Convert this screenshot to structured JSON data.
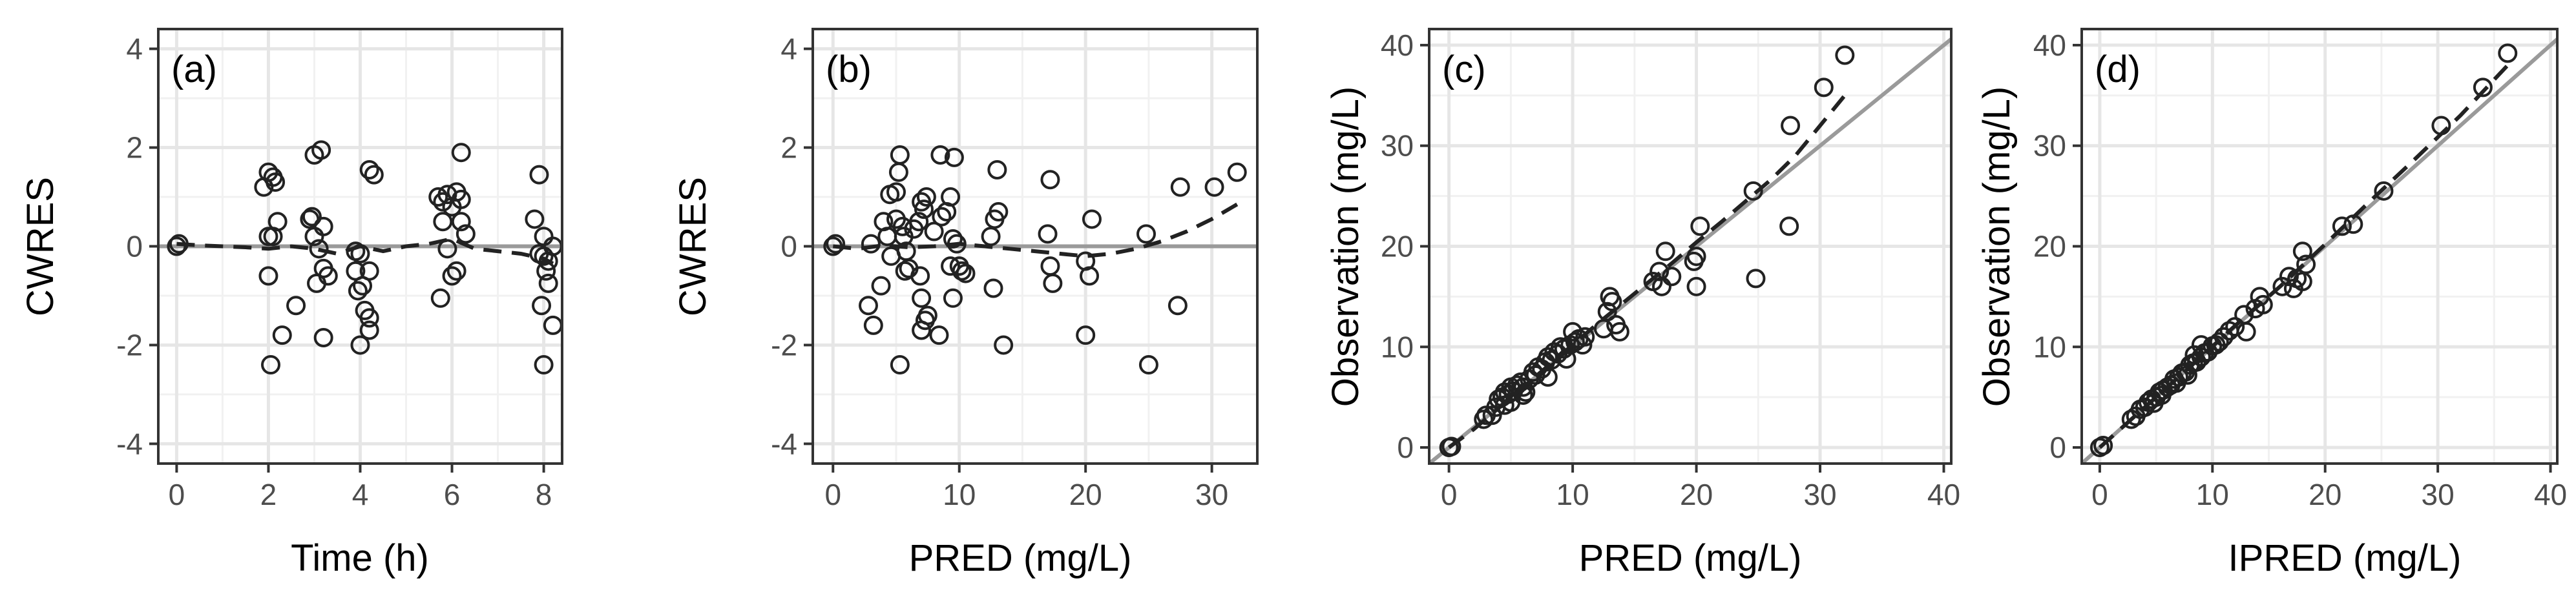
{
  "figure": {
    "title": ""
  },
  "chart_data": [
    {
      "type": "scatter",
      "panel_label": "(a)",
      "xlabel": "Time (h)",
      "ylabel": "CWRES",
      "xlim": [
        -0.4,
        8.4
      ],
      "ylim": [
        -4.4,
        4.4
      ],
      "x_ticks": [
        0,
        2,
        4,
        6,
        8
      ],
      "y_ticks": [
        -4,
        -2,
        0,
        2,
        4
      ],
      "reference_line": {
        "type": "horizontal",
        "value": 0
      },
      "points": [
        [
          0,
          0
        ],
        [
          0.05,
          0.05
        ],
        [
          1.9,
          1.2
        ],
        [
          2.0,
          1.5
        ],
        [
          2.1,
          1.4
        ],
        [
          2.15,
          1.3
        ],
        [
          2.0,
          0.2
        ],
        [
          2.1,
          0.2
        ],
        [
          2.0,
          -0.6
        ],
        [
          2.05,
          -2.4
        ],
        [
          2.3,
          -1.8
        ],
        [
          2.2,
          0.5
        ],
        [
          2.6,
          -1.2
        ],
        [
          2.9,
          0.55
        ],
        [
          2.95,
          0.6
        ],
        [
          3.0,
          0.2
        ],
        [
          3.0,
          1.85
        ],
        [
          3.15,
          1.95
        ],
        [
          3.2,
          0.4
        ],
        [
          3.1,
          -0.05
        ],
        [
          3.2,
          -0.45
        ],
        [
          3.3,
          -0.6
        ],
        [
          3.05,
          -0.75
        ],
        [
          3.2,
          -1.85
        ],
        [
          3.9,
          -0.5
        ],
        [
          3.9,
          -0.1
        ],
        [
          4.0,
          -0.15
        ],
        [
          3.95,
          -0.9
        ],
        [
          4.05,
          -0.8
        ],
        [
          4.2,
          -0.5
        ],
        [
          4.1,
          -1.3
        ],
        [
          4.2,
          -1.45
        ],
        [
          4.2,
          -1.7
        ],
        [
          4.0,
          -2.0
        ],
        [
          4.2,
          1.55
        ],
        [
          4.3,
          1.45
        ],
        [
          5.7,
          1.0
        ],
        [
          5.8,
          0.9
        ],
        [
          5.8,
          0.5
        ],
        [
          5.9,
          1.05
        ],
        [
          6.0,
          0.8
        ],
        [
          6.1,
          1.1
        ],
        [
          6.2,
          1.9
        ],
        [
          6.2,
          0.95
        ],
        [
          6.2,
          0.5
        ],
        [
          6.3,
          0.25
        ],
        [
          5.9,
          -0.05
        ],
        [
          6.1,
          -0.5
        ],
        [
          6.0,
          -0.6
        ],
        [
          5.75,
          -1.05
        ],
        [
          7.8,
          0.55
        ],
        [
          7.9,
          1.45
        ],
        [
          7.9,
          -0.15
        ],
        [
          8.0,
          0.2
        ],
        [
          8.0,
          -0.2
        ],
        [
          8.1,
          -0.3
        ],
        [
          8.2,
          0.0
        ],
        [
          8.05,
          -0.5
        ],
        [
          8.1,
          -0.75
        ],
        [
          7.95,
          -1.2
        ],
        [
          8.2,
          -1.6
        ],
        [
          8.0,
          -2.4
        ]
      ],
      "smooth": [
        [
          0,
          0.05
        ],
        [
          0.5,
          0.02
        ],
        [
          1,
          0.0
        ],
        [
          1.5,
          -0.02
        ],
        [
          2,
          -0.05
        ],
        [
          2.5,
          0.0
        ],
        [
          3,
          -0.05
        ],
        [
          3.5,
          -0.15
        ],
        [
          4,
          0.0
        ],
        [
          4.5,
          -0.1
        ],
        [
          5,
          0.0
        ],
        [
          5.5,
          0.05
        ],
        [
          6,
          0.15
        ],
        [
          6.5,
          -0.05
        ],
        [
          7,
          -0.1
        ],
        [
          7.5,
          -0.15
        ],
        [
          8,
          -0.25
        ],
        [
          8.2,
          -0.35
        ]
      ]
    },
    {
      "type": "scatter",
      "panel_label": "(b)",
      "xlabel": "PRED (mg/L)",
      "ylabel": "CWRES",
      "xlim": [
        -1.6,
        33.6
      ],
      "ylim": [
        -4.4,
        4.4
      ],
      "x_ticks": [
        0,
        10,
        20,
        30
      ],
      "y_ticks": [
        -4,
        -2,
        0,
        2,
        4
      ],
      "reference_line": {
        "type": "horizontal",
        "value": 0
      },
      "points": [
        [
          0,
          0
        ],
        [
          0.2,
          0.05
        ],
        [
          2.8,
          -1.2
        ],
        [
          3.2,
          -1.6
        ],
        [
          3.0,
          0.05
        ],
        [
          3.8,
          -0.8
        ],
        [
          4.0,
          0.5
        ],
        [
          4.5,
          1.05
        ],
        [
          4.3,
          0.2
        ],
        [
          4.6,
          -0.2
        ],
        [
          5.0,
          1.1
        ],
        [
          5.2,
          1.5
        ],
        [
          5.3,
          1.85
        ],
        [
          5.0,
          0.55
        ],
        [
          5.5,
          0.4
        ],
        [
          5.6,
          0.2
        ],
        [
          5.8,
          -0.1
        ],
        [
          5.7,
          -0.5
        ],
        [
          6.0,
          -0.45
        ],
        [
          5.3,
          -2.4
        ],
        [
          6.4,
          0.35
        ],
        [
          6.8,
          0.5
        ],
        [
          7.0,
          0.9
        ],
        [
          7.2,
          0.75
        ],
        [
          7.4,
          1.0
        ],
        [
          6.9,
          -0.6
        ],
        [
          7.0,
          -1.05
        ],
        [
          7.3,
          -1.5
        ],
        [
          7.0,
          -1.7
        ],
        [
          7.5,
          -1.4
        ],
        [
          8.0,
          0.3
        ],
        [
          8.5,
          1.85
        ],
        [
          8.6,
          0.6
        ],
        [
          8.4,
          -1.8
        ],
        [
          9.0,
          0.7
        ],
        [
          9.3,
          1.0
        ],
        [
          9.6,
          1.8
        ],
        [
          9.5,
          0.15
        ],
        [
          9.3,
          -0.4
        ],
        [
          9.5,
          -1.05
        ],
        [
          10.0,
          -0.4
        ],
        [
          10.2,
          -0.5
        ],
        [
          10.5,
          -0.55
        ],
        [
          9.8,
          0.05
        ],
        [
          13.0,
          1.55
        ],
        [
          12.8,
          0.55
        ],
        [
          13.1,
          0.7
        ],
        [
          12.7,
          -0.85
        ],
        [
          13.5,
          -2.0
        ],
        [
          12.5,
          0.2
        ],
        [
          17.2,
          1.35
        ],
        [
          17.0,
          0.25
        ],
        [
          17.2,
          -0.4
        ],
        [
          17.4,
          -0.75
        ],
        [
          20.0,
          -0.3
        ],
        [
          20.3,
          -0.6
        ],
        [
          20.5,
          0.55
        ],
        [
          20.0,
          -1.8
        ],
        [
          24.8,
          0.25
        ],
        [
          25.0,
          -2.4
        ],
        [
          27.5,
          1.2
        ],
        [
          27.3,
          -1.2
        ],
        [
          30.2,
          1.2
        ],
        [
          32.0,
          1.5
        ]
      ],
      "smooth": [
        [
          0,
          0.0
        ],
        [
          2,
          -0.05
        ],
        [
          4,
          0.02
        ],
        [
          6,
          -0.02
        ],
        [
          8,
          0.0
        ],
        [
          10,
          0.05
        ],
        [
          12,
          0.0
        ],
        [
          14,
          -0.05
        ],
        [
          16,
          -0.1
        ],
        [
          18,
          -0.15
        ],
        [
          20,
          -0.2
        ],
        [
          22,
          -0.15
        ],
        [
          24,
          -0.05
        ],
        [
          26,
          0.1
        ],
        [
          28,
          0.3
        ],
        [
          30,
          0.55
        ],
        [
          32,
          0.85
        ]
      ]
    },
    {
      "type": "scatter",
      "panel_label": "(c)",
      "xlabel": "PRED (mg/L)",
      "ylabel": "Observation (mg/L)",
      "xlim": [
        -1.6,
        40.6
      ],
      "ylim": [
        -1.6,
        41.6
      ],
      "x_ticks": [
        0,
        10,
        20,
        30,
        40
      ],
      "y_ticks": [
        0,
        10,
        20,
        30,
        40
      ],
      "reference_line": {
        "type": "identity"
      },
      "points": [
        [
          0,
          0
        ],
        [
          0.2,
          0.1
        ],
        [
          2.8,
          2.8
        ],
        [
          3.0,
          3.2
        ],
        [
          3.5,
          3.2
        ],
        [
          3.8,
          4.0
        ],
        [
          4.0,
          4.8
        ],
        [
          4.3,
          5.0
        ],
        [
          4.5,
          5.5
        ],
        [
          4.8,
          5.3
        ],
        [
          5.0,
          6.0
        ],
        [
          5.2,
          5.6
        ],
        [
          5.5,
          6.2
        ],
        [
          5.8,
          6.5
        ],
        [
          6.0,
          6.0
        ],
        [
          6.2,
          5.5
        ],
        [
          6.5,
          6.8
        ],
        [
          6.8,
          7.5
        ],
        [
          7.0,
          7.2
        ],
        [
          7.2,
          8.0
        ],
        [
          7.5,
          7.8
        ],
        [
          7.8,
          8.5
        ],
        [
          8.0,
          9.0
        ],
        [
          8.3,
          8.7
        ],
        [
          8.5,
          9.5
        ],
        [
          8.8,
          9.3
        ],
        [
          9.0,
          10.0
        ],
        [
          9.3,
          9.8
        ],
        [
          9.5,
          8.8
        ],
        [
          9.8,
          10.2
        ],
        [
          10.0,
          11.5
        ],
        [
          10.2,
          10.5
        ],
        [
          10.5,
          10.8
        ],
        [
          10.8,
          10.2
        ],
        [
          11.0,
          11.0
        ],
        [
          4.5,
          4.2
        ],
        [
          5.0,
          4.5
        ],
        [
          6.0,
          5.2
        ],
        [
          8.0,
          7.0
        ],
        [
          12.8,
          13.5
        ],
        [
          13.0,
          15.0
        ],
        [
          13.2,
          14.5
        ],
        [
          13.5,
          12.2
        ],
        [
          13.8,
          11.5
        ],
        [
          12.5,
          11.8
        ],
        [
          16.5,
          16.5
        ],
        [
          17.0,
          17.5
        ],
        [
          17.2,
          16.0
        ],
        [
          17.5,
          19.5
        ],
        [
          18.0,
          17.0
        ],
        [
          19.8,
          18.5
        ],
        [
          20.0,
          19.0
        ],
        [
          20.3,
          22.0
        ],
        [
          20.0,
          16.0
        ],
        [
          24.6,
          25.5
        ],
        [
          24.8,
          16.8
        ],
        [
          27.5,
          22.0
        ],
        [
          27.6,
          32.0
        ],
        [
          30.3,
          35.8
        ],
        [
          32.0,
          39.0
        ]
      ],
      "smooth": [
        [
          0,
          0
        ],
        [
          2,
          1.8
        ],
        [
          4,
          3.9
        ],
        [
          6,
          6.0
        ],
        [
          8,
          8.1
        ],
        [
          10,
          10.2
        ],
        [
          12,
          12.3
        ],
        [
          14,
          14.3
        ],
        [
          16,
          16.3
        ],
        [
          18,
          18.3
        ],
        [
          20,
          20.4
        ],
        [
          22,
          22.4
        ],
        [
          24,
          24.5
        ],
        [
          26,
          26.6
        ],
        [
          28,
          29.0
        ],
        [
          30,
          32.0
        ],
        [
          32,
          35.0
        ]
      ]
    },
    {
      "type": "scatter",
      "panel_label": "(d)",
      "xlabel": "IPRED (mg/L)",
      "ylabel": "Observation (mg/L)",
      "xlim": [
        -1.6,
        40.6
      ],
      "ylim": [
        -1.6,
        41.6
      ],
      "x_ticks": [
        0,
        10,
        20,
        30,
        40
      ],
      "y_ticks": [
        0,
        10,
        20,
        30,
        40
      ],
      "reference_line": {
        "type": "identity"
      },
      "points": [
        [
          0,
          0
        ],
        [
          0.3,
          0.2
        ],
        [
          2.8,
          2.8
        ],
        [
          3.2,
          3.1
        ],
        [
          3.6,
          3.8
        ],
        [
          4.0,
          4.0
        ],
        [
          4.3,
          4.5
        ],
        [
          4.6,
          4.8
        ],
        [
          5.0,
          5.0
        ],
        [
          5.3,
          5.5
        ],
        [
          5.6,
          5.7
        ],
        [
          6.0,
          6.0
        ],
        [
          6.3,
          6.2
        ],
        [
          6.6,
          6.8
        ],
        [
          7.0,
          7.0
        ],
        [
          7.3,
          7.4
        ],
        [
          7.6,
          7.5
        ],
        [
          8.0,
          8.2
        ],
        [
          8.3,
          8.4
        ],
        [
          8.6,
          8.5
        ],
        [
          9.0,
          9.0
        ],
        [
          9.3,
          9.4
        ],
        [
          9.6,
          9.5
        ],
        [
          10.0,
          10.1
        ],
        [
          10.3,
          10.2
        ],
        [
          10.6,
          10.5
        ],
        [
          11.0,
          11.0
        ],
        [
          11.5,
          11.6
        ],
        [
          12.0,
          12.0
        ],
        [
          4.8,
          4.4
        ],
        [
          5.5,
          5.2
        ],
        [
          6.8,
          6.4
        ],
        [
          7.8,
          7.2
        ],
        [
          9.0,
          10.2
        ],
        [
          8.4,
          9.2
        ],
        [
          12.8,
          13.2
        ],
        [
          13.0,
          11.5
        ],
        [
          13.8,
          13.8
        ],
        [
          14.2,
          15.0
        ],
        [
          14.5,
          14.2
        ],
        [
          16.2,
          16.0
        ],
        [
          16.8,
          17.0
        ],
        [
          17.2,
          15.8
        ],
        [
          17.5,
          16.8
        ],
        [
          18.0,
          19.5
        ],
        [
          18.3,
          18.2
        ],
        [
          18.0,
          16.5
        ],
        [
          21.5,
          22.0
        ],
        [
          22.5,
          22.2
        ],
        [
          25.2,
          25.5
        ],
        [
          30.3,
          32.0
        ],
        [
          34.0,
          35.8
        ],
        [
          36.2,
          39.2
        ]
      ],
      "smooth": [
        [
          0,
          0
        ],
        [
          4,
          4.0
        ],
        [
          8,
          8.0
        ],
        [
          12,
          12.1
        ],
        [
          16,
          16.0
        ],
        [
          20,
          20.2
        ],
        [
          24,
          24.5
        ],
        [
          28,
          28.7
        ],
        [
          32,
          33.0
        ],
        [
          36.2,
          38.0
        ]
      ]
    }
  ]
}
